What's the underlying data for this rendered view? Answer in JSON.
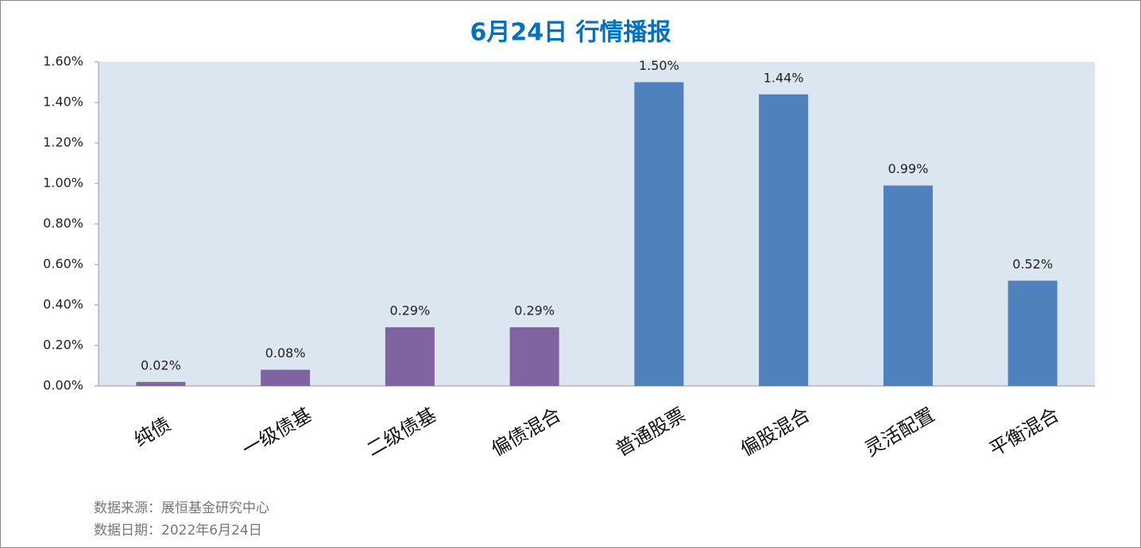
{
  "chart_data": {
    "type": "bar",
    "title": "6月24日  行情播报",
    "categories": [
      "纯债",
      "一级债基",
      "二级债基",
      "偏债混合",
      "普通股票",
      "偏股混合",
      "灵活配置",
      "平衡混合"
    ],
    "values": [
      0.02,
      0.08,
      0.29,
      0.29,
      1.5,
      1.44,
      0.99,
      0.52
    ],
    "value_labels": [
      "0.02%",
      "0.08%",
      "0.29%",
      "0.29%",
      "1.50%",
      "1.44%",
      "0.99%",
      "0.52%"
    ],
    "colors": [
      "#8064a2",
      "#8064a2",
      "#8064a2",
      "#8064a2",
      "#4f81bd",
      "#4f81bd",
      "#4f81bd",
      "#4f81bd"
    ],
    "ylim": [
      0,
      1.6
    ],
    "yticks": [
      {
        "value": 0,
        "label": "0.00%"
      },
      {
        "value": 0.2,
        "label": "0.20%"
      },
      {
        "value": 0.4,
        "label": "0.40%"
      },
      {
        "value": 0.6,
        "label": "0.60%"
      },
      {
        "value": 0.8,
        "label": "0.80%"
      },
      {
        "value": 1.0,
        "label": "1.00%"
      },
      {
        "value": 1.2,
        "label": "1.20%"
      },
      {
        "value": 1.4,
        "label": "1.40%"
      },
      {
        "value": 1.6,
        "label": "1.60%"
      }
    ],
    "source": "数据来源：展恒基金研究中心",
    "date_note": "数据日期：2022年6月24日"
  }
}
